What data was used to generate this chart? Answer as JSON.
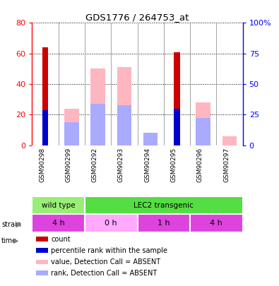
{
  "title": "GDS1776 / 264753_at",
  "samples": [
    "GSM90298",
    "GSM90299",
    "GSM90292",
    "GSM90293",
    "GSM90294",
    "GSM90295",
    "GSM90296",
    "GSM90297"
  ],
  "count_values": [
    64,
    0,
    0,
    0,
    0,
    61,
    0,
    0
  ],
  "rank_values": [
    23,
    0,
    0,
    0,
    0,
    24,
    0,
    0
  ],
  "absent_value_values": [
    0,
    24,
    50,
    51,
    6,
    0,
    28,
    6
  ],
  "absent_rank_values": [
    0,
    15,
    27,
    26,
    8,
    0,
    18,
    0
  ],
  "left_ylim": [
    0,
    80
  ],
  "right_ylim": [
    0,
    100
  ],
  "left_yticks": [
    0,
    20,
    40,
    60,
    80
  ],
  "right_yticks": [
    0,
    25,
    50,
    75,
    100
  ],
  "right_yticklabels": [
    "0",
    "25",
    "50",
    "75",
    "100%"
  ],
  "strain_labels": [
    {
      "text": "wild type",
      "start": 0,
      "end": 2,
      "color": "#99EE77"
    },
    {
      "text": "LEC2 transgenic",
      "start": 2,
      "end": 8,
      "color": "#55DD44"
    }
  ],
  "time_labels": [
    {
      "text": "4 h",
      "start": 0,
      "end": 2,
      "color": "#DD44DD"
    },
    {
      "text": "0 h",
      "start": 2,
      "end": 4,
      "color": "#FFAAFF"
    },
    {
      "text": "1 h",
      "start": 4,
      "end": 6,
      "color": "#DD44DD"
    },
    {
      "text": "4 h",
      "start": 6,
      "end": 8,
      "color": "#DD44DD"
    }
  ],
  "count_color": "#CC0000",
  "rank_color": "#0000CC",
  "absent_value_color": "#FFB6C1",
  "absent_rank_color": "#AAAAFF",
  "xlabel_bg": "#C8C8C8",
  "plot_bg": "#FFFFFF",
  "legend_items": [
    {
      "label": "count",
      "color": "#CC0000"
    },
    {
      "label": "percentile rank within the sample",
      "color": "#0000CC"
    },
    {
      "label": "value, Detection Call = ABSENT",
      "color": "#FFB6C1"
    },
    {
      "label": "rank, Detection Call = ABSENT",
      "color": "#AAAAFF"
    }
  ]
}
